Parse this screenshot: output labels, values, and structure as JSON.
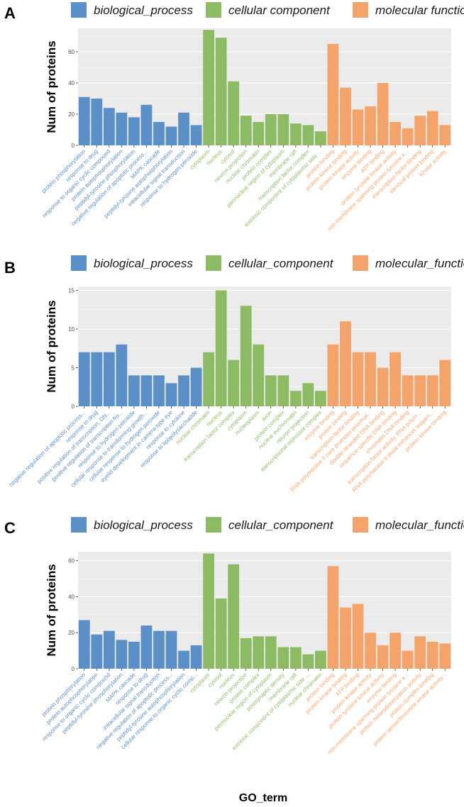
{
  "figure": {
    "xlabel": "GO_term",
    "ylabel": "Num of proteins"
  },
  "colors": {
    "biological_process": "#5b8fc7",
    "cellular_component": "#8dbb63",
    "molecular_function": "#f4a46b",
    "panel_bg": "#ebebeb",
    "grid": "#ffffff"
  },
  "chart_data": [
    {
      "type": "bar",
      "panel": "A",
      "legend": [
        "biological_process",
        "cellular component",
        "molecular function"
      ],
      "ylabel": "Num of proteins",
      "ylim": [
        0,
        75
      ],
      "yticks": [
        0,
        20,
        40,
        60
      ],
      "categories": [
        "protein phosphorylation",
        "response to drug",
        "response to organic cyclic compound",
        "protein autophosphorylation",
        "peptidyl-tyrosine phosphorylation",
        "negative regulation of apoptotic process...",
        "MAPK cascade",
        "peptidyl-tyrosine autophosphorylation",
        "intracellular signal transduction",
        "response to hydrogen peroxide",
        "cytoplasm",
        "nucleus",
        "cytosol",
        "neuron projection",
        "nuclear chromatin",
        "protein complex",
        "perinuclear region of cytoplasm",
        "membrane raft",
        "transcription factor complex",
        "extrinsic component of cytoplasmic side ...",
        "protein binding",
        "protein kinase binding",
        "protein kinase activity",
        "enzyme binding",
        "ATP binding",
        "protein tyrosine kinase activity",
        "non-membrane spanning protein tyrosine k...",
        "transcription factor binding",
        "identical protein binding",
        "kinase activity"
      ],
      "groups": [
        "BP",
        "BP",
        "BP",
        "BP",
        "BP",
        "BP",
        "BP",
        "BP",
        "BP",
        "BP",
        "CC",
        "CC",
        "CC",
        "CC",
        "CC",
        "CC",
        "CC",
        "CC",
        "CC",
        "CC",
        "MF",
        "MF",
        "MF",
        "MF",
        "MF",
        "MF",
        "MF",
        "MF",
        "MF",
        "MF"
      ],
      "values": [
        31,
        30,
        24,
        21,
        18,
        26,
        15,
        12,
        21,
        13,
        74,
        69,
        41,
        19,
        15,
        20,
        20,
        14,
        13,
        9,
        65,
        37,
        23,
        25,
        40,
        15,
        11,
        19,
        22,
        13
      ]
    },
    {
      "type": "bar",
      "panel": "B",
      "legend": [
        "biological_process",
        "cellular_component",
        "molecular_function"
      ],
      "ylabel": "Num of proteins",
      "ylim": [
        0,
        15.5
      ],
      "yticks": [
        0,
        5,
        10,
        15
      ],
      "categories": [
        "negative regulation of apoptotic process...",
        "response to drug",
        "positive regulation of transcription, DN...",
        "positive regulation of transcription fro...",
        "response to hydrogen peroxide",
        "cellular response to transforming growth...",
        "cellular response to hydrogen peroxide",
        "eyelid development in camera-type eye",
        "response to cytokine",
        "response to lipopolysaccharide",
        "nuclear chromatin",
        "nucleus",
        "transcription factor complex",
        "cytoplasm",
        "nucleoplasm",
        "axon",
        "protein complex",
        "nuclear euchromatin",
        "neuron projection",
        "transcriptional repressor complex",
        "enzyme binding",
        "protein binding",
        "transcription factor binding",
        "RNA polymerase II core promoter proximal...",
        "double-stranded DNA binding",
        "sequence-specific DNA binding",
        "chromatin DNA binding",
        "transcription factor activity, RNA polym...",
        "RNA polymerase II distal enhancer sequen...",
        "protein kinase binding"
      ],
      "groups": [
        "BP",
        "BP",
        "BP",
        "BP",
        "BP",
        "BP",
        "BP",
        "BP",
        "BP",
        "BP",
        "CC",
        "CC",
        "CC",
        "CC",
        "CC",
        "CC",
        "CC",
        "CC",
        "CC",
        "CC",
        "MF",
        "MF",
        "MF",
        "MF",
        "MF",
        "MF",
        "MF",
        "MF",
        "MF",
        "MF"
      ],
      "values": [
        7,
        7,
        7,
        8,
        4,
        4,
        4,
        3,
        4,
        5,
        7,
        15,
        6,
        13,
        8,
        4,
        4,
        2,
        3,
        2,
        8,
        11,
        7,
        7,
        5,
        7,
        4,
        4,
        4,
        6
      ]
    },
    {
      "type": "bar",
      "panel": "C",
      "legend": [
        "biological_process",
        "cellular_component",
        "molecular_function"
      ],
      "ylabel": "Num of proteins",
      "ylim": [
        0,
        65
      ],
      "yticks": [
        0,
        20,
        40,
        60
      ],
      "categories": [
        "protein phosphorylation",
        "protein autophosphorylation",
        "response to organic cyclic compound",
        "peptidyl-tyrosine phosphorylation",
        "MAPK cascade",
        "response to drug",
        "intracellular signal transduction",
        "negative regulation of apoptotic process...",
        "peptidyl-tyrosine autophosphorylation",
        "cellular response to organic cyclic comp...",
        "cytoplasm",
        "cytosol",
        "nucleus",
        "neuron projection",
        "protein complex",
        "perinuclear region of cytoplasm",
        "postsynaptic density",
        "membrane raft",
        "extrinsic component of cytoplasmic side ...",
        "nuclear chromatin",
        "protein binding",
        "protein kinase binding",
        "ATP binding",
        "protein kinase activity",
        "protein tyrosine kinase activity",
        "enzyme binding",
        "non-membrane spanning protein tyrosine k...",
        "protein heterodimerization activity",
        "protein complex binding",
        "protein serine/threonine kinase activity..."
      ],
      "groups": [
        "BP",
        "BP",
        "BP",
        "BP",
        "BP",
        "BP",
        "BP",
        "BP",
        "BP",
        "BP",
        "CC",
        "CC",
        "CC",
        "CC",
        "CC",
        "CC",
        "CC",
        "CC",
        "CC",
        "CC",
        "MF",
        "MF",
        "MF",
        "MF",
        "MF",
        "MF",
        "MF",
        "MF",
        "MF",
        "MF"
      ],
      "values": [
        27,
        19,
        21,
        16,
        15,
        24,
        21,
        21,
        10,
        13,
        64,
        39,
        58,
        17,
        18,
        18,
        12,
        12,
        8,
        10,
        57,
        34,
        36,
        20,
        13,
        20,
        10,
        18,
        15,
        14
      ]
    }
  ]
}
